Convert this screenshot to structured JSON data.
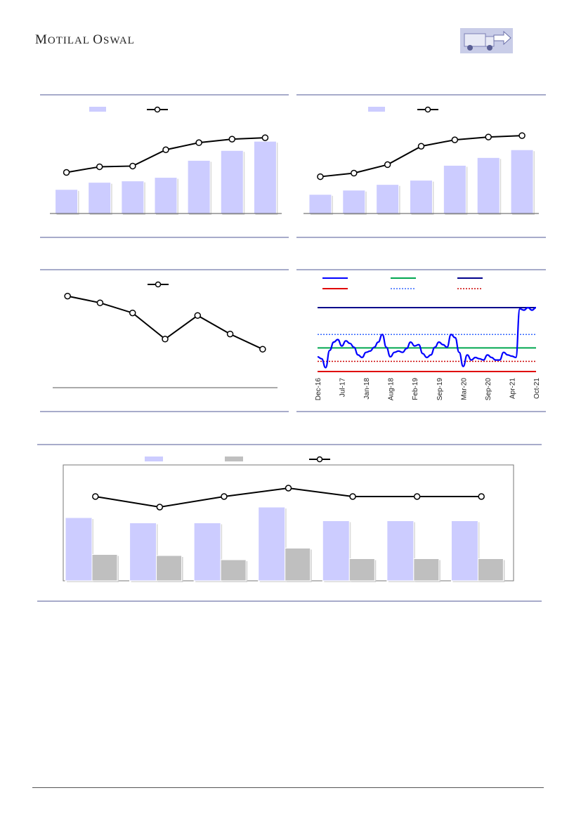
{
  "header": {
    "brand": "Motilal Oswal"
  },
  "colors": {
    "bar_primary": "#ccccff",
    "bar_secondary": "#bfbfbf",
    "line": "#000000",
    "frame": "#8a8fb8",
    "band_mean": "#00a650",
    "band_max": "#00008b",
    "band_min": "#e00000",
    "band_plus_sd": "#3366ff",
    "band_minus_sd": "#cc0000",
    "pe_line": "#0000ff"
  },
  "chart_data": [
    {
      "id": "chart1",
      "type": "bar",
      "series": [
        {
          "name": "",
          "kind": "bar",
          "values": [
            34,
            44,
            46,
            51,
            75,
            89,
            102
          ]
        },
        {
          "name": "",
          "kind": "line",
          "values": [
            58,
            66,
            67,
            90,
            100,
            105,
            107
          ]
        }
      ],
      "ylim_bar": [
        0,
        120
      ],
      "ylim_line": [
        0,
        120
      ]
    },
    {
      "id": "chart2",
      "type": "bar",
      "series": [
        {
          "name": "",
          "kind": "bar",
          "values": [
            27,
            33,
            41,
            47,
            68,
            79,
            90
          ]
        },
        {
          "name": "",
          "kind": "line",
          "values": [
            52,
            57,
            69,
            95,
            104,
            108,
            110
          ]
        }
      ],
      "ylim_bar": [
        0,
        120
      ],
      "ylim_line": [
        0,
        120
      ]
    },
    {
      "id": "chart3",
      "type": "line",
      "series": [
        {
          "name": "",
          "values": [
            92,
            84,
            72,
            41,
            69,
            47,
            29
          ]
        }
      ],
      "ylim": [
        0,
        100
      ]
    },
    {
      "id": "chart4",
      "type": "line",
      "x": [
        "Dec-16",
        "Jul-17",
        "Jan-18",
        "Aug-18",
        "Feb-19",
        "Sep-19",
        "Mar-20",
        "Sep-20",
        "Apr-21",
        "Oct-21"
      ],
      "pe_series": [
        45,
        42,
        28,
        55,
        68,
        72,
        62,
        70,
        66,
        60,
        48,
        44,
        52,
        54,
        60,
        68,
        80,
        60,
        45,
        52,
        54,
        52,
        58,
        68,
        62,
        64,
        50,
        44,
        48,
        60,
        68,
        64,
        60,
        80,
        75,
        52,
        30,
        48,
        40,
        44,
        42,
        40,
        48,
        44,
        40,
        40,
        52,
        48,
        46,
        44,
        120,
        118,
        122,
        118,
        122
      ],
      "bands": {
        "max": 122,
        "plus_sd": 80,
        "mean": 59,
        "minus_sd": 38,
        "min": 22
      },
      "ylim": [
        15,
        130
      ],
      "legend": [
        "",
        "",
        "",
        "",
        "",
        ""
      ]
    },
    {
      "id": "chart5",
      "type": "bar",
      "series": [
        {
          "name": "",
          "kind": "bar",
          "values": [
            60,
            55,
            55,
            70,
            57,
            57,
            57
          ]
        },
        {
          "name": "",
          "kind": "bar",
          "values": [
            25,
            24,
            20,
            31,
            21,
            21,
            21
          ]
        },
        {
          "name": "",
          "kind": "line",
          "values": [
            80,
            70,
            80,
            88,
            80,
            80,
            80
          ]
        }
      ],
      "ylim": [
        0,
        100
      ]
    }
  ]
}
